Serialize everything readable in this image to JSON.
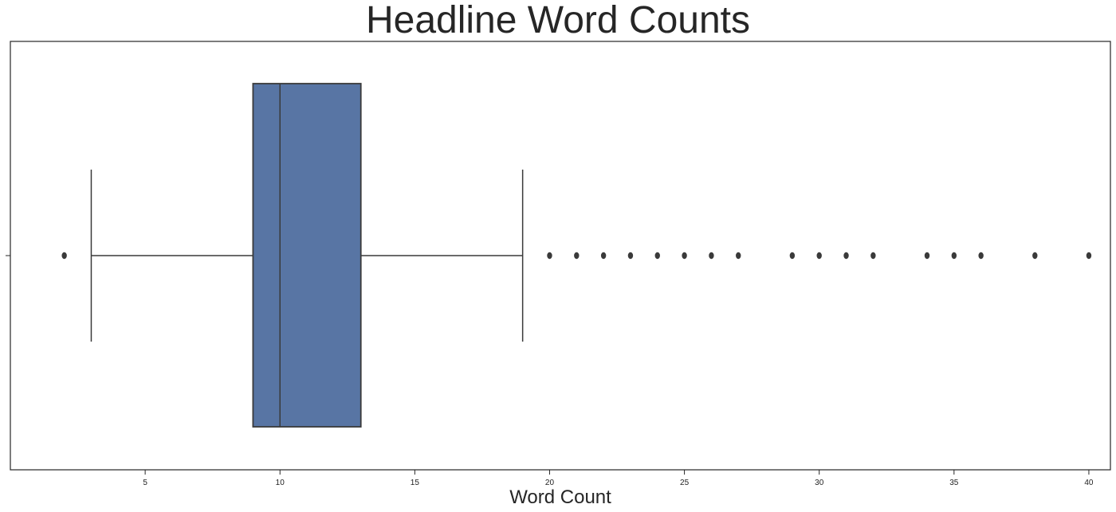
{
  "chart_data": {
    "type": "box",
    "title": "Headline Word Counts",
    "xlabel": "Word Count",
    "ylabel": "",
    "xlim": [
      0,
      40.8
    ],
    "xticks": [
      5,
      10,
      15,
      20,
      25,
      30,
      35,
      40
    ],
    "grid": false,
    "box": {
      "q1": 9,
      "median": 10,
      "q3": 13,
      "whisker_low": 3,
      "whisker_high": 19,
      "outliers": [
        2,
        20,
        21,
        22,
        23,
        24,
        25,
        26,
        27,
        29,
        30,
        31,
        32,
        34,
        35,
        36,
        38,
        40
      ]
    },
    "colors": {
      "box_fill": "#5875a4",
      "line": "#3a3a3a",
      "axes": "#262626"
    }
  }
}
